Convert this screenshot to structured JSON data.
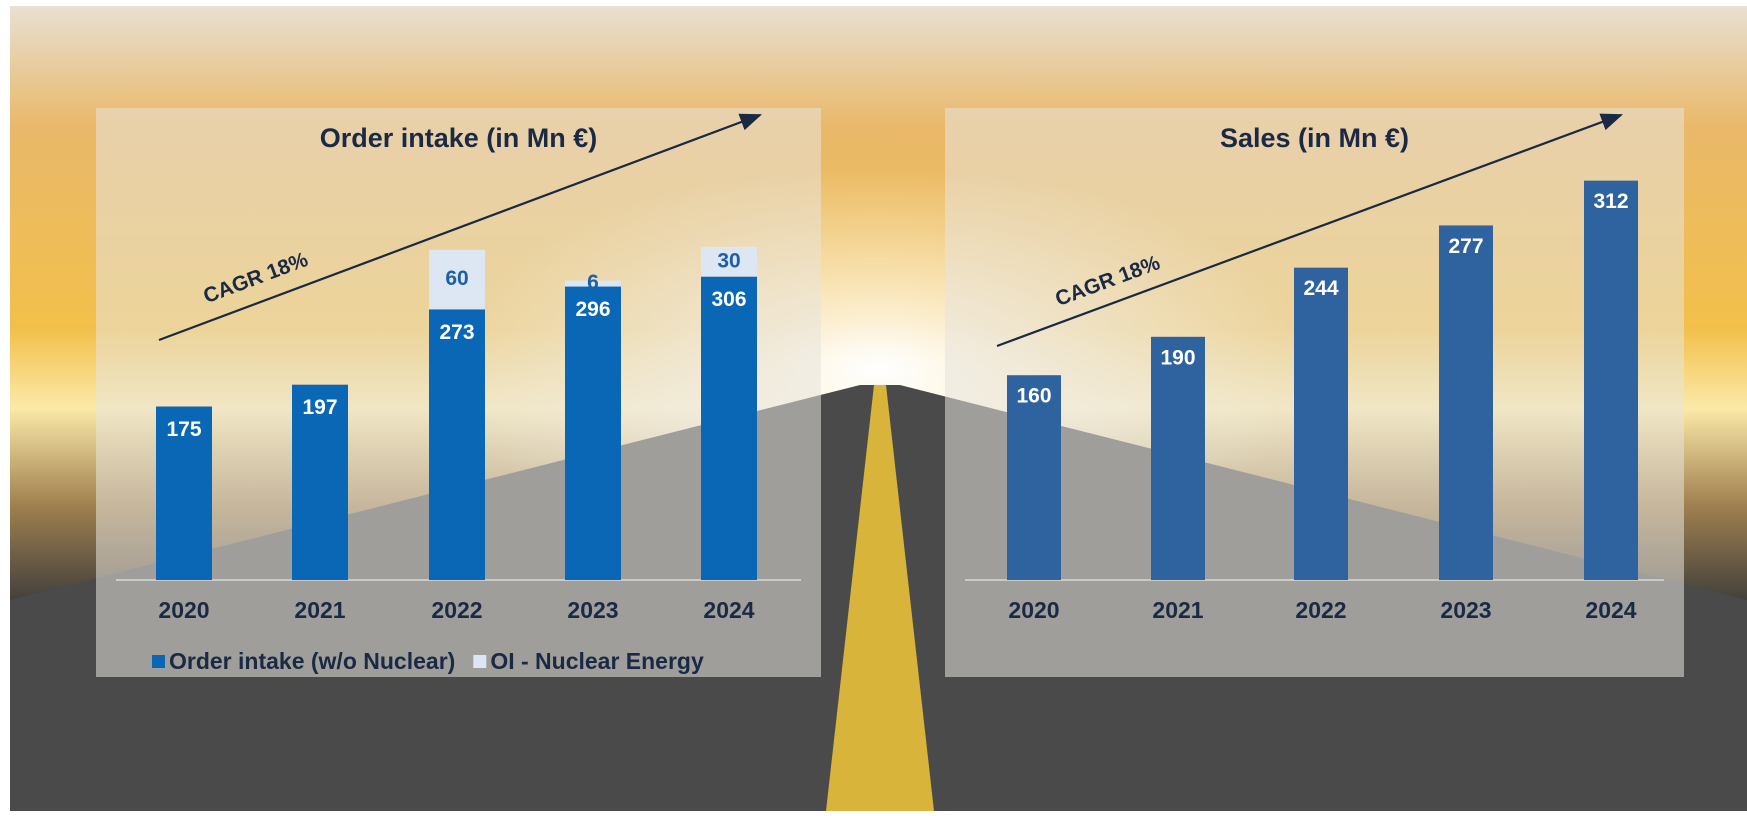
{
  "chart_data": [
    {
      "type": "stacked_bar",
      "title": "Order intake (in Mn €)",
      "annotation": "CAGR 18%",
      "categories": [
        "2020",
        "2021",
        "2022",
        "2023",
        "2024"
      ],
      "series": [
        {
          "name": "Order intake (w/o Nuclear)",
          "color": "#0a67b5",
          "label_color": "#ffffff",
          "values": [
            175,
            197,
            273,
            296,
            306
          ]
        },
        {
          "name": "OI - Nuclear Energy",
          "color": "#dde6f3",
          "label_color": "#1f5fa6",
          "values": [
            null,
            null,
            60,
            6,
            30
          ]
        }
      ],
      "ylim": [
        0,
        350
      ],
      "legend": "bottom"
    },
    {
      "type": "bar",
      "title": "Sales (in Mn €)",
      "annotation": "CAGR 18%",
      "categories": [
        "2020",
        "2021",
        "2022",
        "2023",
        "2024"
      ],
      "values": [
        160,
        190,
        244,
        277,
        312
      ],
      "color": "#2f63a0",
      "label_color": "#ffffff",
      "ylim": [
        0,
        350
      ]
    }
  ]
}
